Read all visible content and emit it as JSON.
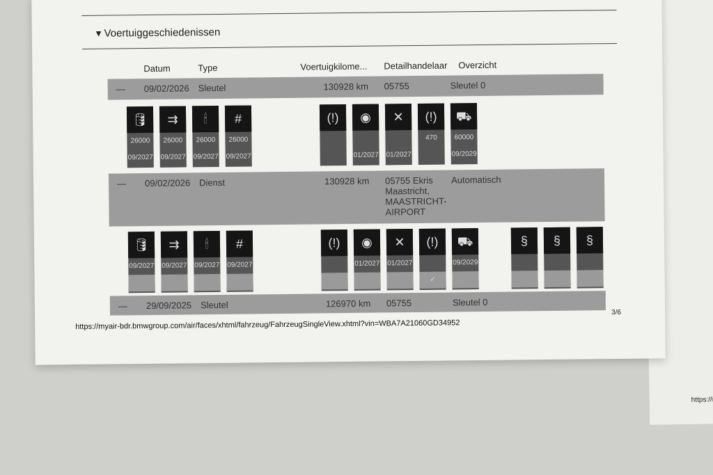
{
  "section": {
    "title": "Voertuiggeschiedenissen",
    "arrow": "▾"
  },
  "headers": [
    "Datum",
    "Type",
    "Voertuigkilome...",
    "Detailhandelaar",
    "Overzicht"
  ],
  "rows": [
    {
      "collapse": "—",
      "date": "09/02/2026",
      "type": "Sleutel",
      "km": "130928 km",
      "dealer": "05755",
      "overview": "Sleutel 0",
      "tiles": [
        {
          "icon": "oil-can-icon",
          "glyph": "🛢",
          "a": "26000",
          "b": "09/2027"
        },
        {
          "icon": "air-filter-icon",
          "glyph": "⇉",
          "a": "26000",
          "b": "09/2027"
        },
        {
          "icon": "spark-plug-icon",
          "glyph": "🕯",
          "a": "26000",
          "b": "09/2027"
        },
        {
          "icon": "fuel-filter-icon",
          "glyph": "#",
          "a": "26000",
          "b": "09/2027"
        },
        {
          "icon": "brake-front-icon",
          "glyph": "(!)",
          "a": "",
          "b": ""
        },
        {
          "icon": "brake-fluid-icon",
          "glyph": "◉",
          "a": "",
          "b": "01/2027"
        },
        {
          "icon": "service-tools-icon",
          "glyph": "✕",
          "a": "",
          "b": "01/2027"
        },
        {
          "icon": "brake-rear-icon",
          "glyph": "(!)",
          "a": "470",
          "b": ""
        },
        {
          "icon": "vehicle-inspection-icon",
          "glyph": "⛟",
          "a": "60000",
          "b": "09/2029"
        }
      ]
    },
    {
      "collapse": "—",
      "date": "09/02/2026",
      "type": "Dienst",
      "km": "130928 km",
      "dealer": "05755 Ekris Maastricht, MAASTRICHT-AIRPORT",
      "overview": "Automatisch",
      "tiles": [
        {
          "icon": "oil-can-icon",
          "glyph": "🛢",
          "b": "09/2027"
        },
        {
          "icon": "air-filter-icon",
          "glyph": "⇉",
          "b": "09/2027"
        },
        {
          "icon": "spark-plug-icon",
          "glyph": "🕯",
          "b": "09/2027"
        },
        {
          "icon": "fuel-filter-icon",
          "glyph": "#",
          "b": "09/2027"
        },
        {
          "icon": "brake-front-icon",
          "glyph": "(!)",
          "b": ""
        },
        {
          "icon": "brake-fluid-icon",
          "glyph": "◉",
          "b": "01/2027"
        },
        {
          "icon": "service-tools-icon",
          "glyph": "✕",
          "b": "01/2027"
        },
        {
          "icon": "brake-rear-icon",
          "glyph": "(!)",
          "b": "",
          "c": "✓"
        },
        {
          "icon": "vehicle-inspection-icon",
          "glyph": "⛟",
          "b": "09/2029"
        },
        {
          "icon": "legal-exhaust-check-icon",
          "glyph": "§",
          "b": ""
        },
        {
          "icon": "legal-inspection-icon",
          "glyph": "§",
          "b": ""
        },
        {
          "icon": "legal-inspection-icon",
          "glyph": "§",
          "b": ""
        }
      ]
    },
    {
      "collapse": "—",
      "date": "29/09/2025",
      "type": "Sleutel",
      "km": "126970 km",
      "dealer": "05755",
      "overview": "Sleutel 0"
    }
  ],
  "footer": {
    "url": "https://myair-bdr.bmwgroup.com/air/faces/xhtml/fahrzeug/FahrzeugSingleView.xhtml?vin=WBA7A21060GD34952",
    "page": "3/6"
  },
  "second_page": {
    "url": "https://my"
  }
}
